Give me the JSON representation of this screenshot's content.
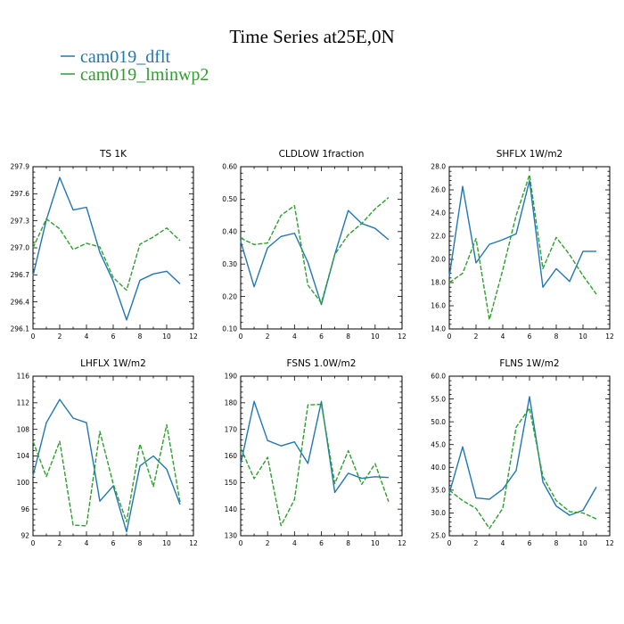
{
  "figure": {
    "title": "Time Series at25E,0N",
    "legend": [
      {
        "label": "cam019_dflt",
        "color": "#1f77b4",
        "dash": "solid"
      },
      {
        "label": "cam019_lminwp2",
        "color": "#2ca02c",
        "dash": "dashed"
      }
    ]
  },
  "chart_data": [
    {
      "type": "line",
      "title": "TS   1K",
      "x": [
        0,
        1,
        2,
        3,
        4,
        5,
        6,
        7,
        8,
        9,
        10,
        11
      ],
      "xlim": [
        0,
        12
      ],
      "xticks": [
        0,
        2,
        4,
        6,
        8,
        10,
        12
      ],
      "xtick_labels": [
        "0",
        "2",
        "4",
        "6",
        "8",
        "10",
        "12"
      ],
      "ylim": [
        296.1,
        297.9
      ],
      "yticks": [
        296.1,
        296.4,
        296.7,
        297.0,
        297.3,
        297.6,
        297.9
      ],
      "ytick_labels": [
        "296.1",
        "296.4",
        "296.7",
        "297.0",
        "297.3",
        "297.6",
        "297.9"
      ],
      "series": [
        {
          "name": "cam019_dflt",
          "values": [
            296.69,
            297.31,
            297.78,
            297.42,
            297.45,
            296.95,
            296.63,
            296.2,
            296.64,
            296.71,
            296.74,
            296.6
          ]
        },
        {
          "name": "cam019_lminwp2",
          "values": [
            297.0,
            297.32,
            297.21,
            296.98,
            297.05,
            297.01,
            296.67,
            296.53,
            297.04,
            297.12,
            297.22,
            297.08
          ]
        }
      ]
    },
    {
      "type": "line",
      "title": "CLDLOW   1fraction",
      "x": [
        0,
        1,
        2,
        3,
        4,
        5,
        6,
        7,
        8,
        9,
        10,
        11
      ],
      "xlim": [
        0,
        12
      ],
      "xticks": [
        0,
        2,
        4,
        6,
        8,
        10,
        12
      ],
      "xtick_labels": [
        "0",
        "2",
        "4",
        "6",
        "8",
        "10",
        "12"
      ],
      "ylim": [
        0.1,
        0.6
      ],
      "yticks": [
        0.1,
        0.2,
        0.3,
        0.4,
        0.5,
        0.6
      ],
      "ytick_labels": [
        "0.10",
        "0.20",
        "0.30",
        "0.40",
        "0.50",
        "0.60"
      ],
      "series": [
        {
          "name": "cam019_dflt",
          "values": [
            0.37,
            0.23,
            0.35,
            0.385,
            0.395,
            0.305,
            0.175,
            0.33,
            0.465,
            0.425,
            0.41,
            0.375
          ]
        },
        {
          "name": "cam019_lminwp2",
          "values": [
            0.38,
            0.36,
            0.365,
            0.45,
            0.48,
            0.235,
            0.18,
            0.33,
            0.39,
            0.425,
            0.47,
            0.505
          ]
        }
      ]
    },
    {
      "type": "line",
      "title": "SHFLX   1W/m2",
      "x": [
        0,
        1,
        2,
        3,
        4,
        5,
        6,
        7,
        8,
        9,
        10,
        11
      ],
      "xlim": [
        0,
        12
      ],
      "xticks": [
        0,
        2,
        4,
        6,
        8,
        10,
        12
      ],
      "xtick_labels": [
        "0",
        "2",
        "4",
        "6",
        "8",
        "10",
        "12"
      ],
      "ylim": [
        14.0,
        28.0
      ],
      "yticks": [
        14.0,
        16.0,
        18.0,
        20.0,
        22.0,
        24.0,
        26.0,
        28.0
      ],
      "ytick_labels": [
        "14.0",
        "16.0",
        "18.0",
        "20.0",
        "22.0",
        "24.0",
        "26.0",
        "28.0"
      ],
      "series": [
        {
          "name": "cam019_dflt",
          "values": [
            18.5,
            26.3,
            19.7,
            21.3,
            21.7,
            22.2,
            26.8,
            17.6,
            19.2,
            18.1,
            20.7,
            20.7
          ]
        },
        {
          "name": "cam019_lminwp2",
          "values": [
            18.0,
            18.8,
            21.8,
            14.8,
            19.1,
            23.8,
            27.3,
            19.2,
            21.9,
            20.4,
            18.6,
            17.0
          ]
        }
      ]
    },
    {
      "type": "line",
      "title": "LHFLX   1W/m2",
      "x": [
        0,
        1,
        2,
        3,
        4,
        5,
        6,
        7,
        8,
        9,
        10,
        11
      ],
      "xlim": [
        0,
        12
      ],
      "xticks": [
        0,
        2,
        4,
        6,
        8,
        10,
        12
      ],
      "xtick_labels": [
        "0",
        "2",
        "4",
        "6",
        "8",
        "10",
        "12"
      ],
      "ylim": [
        92,
        116
      ],
      "yticks": [
        92,
        96,
        100,
        104,
        108,
        112,
        116
      ],
      "ytick_labels": [
        "92",
        "96",
        "100",
        "104",
        "108",
        "112",
        "116"
      ],
      "series": [
        {
          "name": "cam019_dflt",
          "values": [
            101.0,
            109.0,
            112.5,
            109.7,
            109.0,
            97.2,
            99.5,
            92.6,
            102.5,
            104.0,
            102.0,
            96.7
          ]
        },
        {
          "name": "cam019_lminwp2",
          "values": [
            106.2,
            100.9,
            106.2,
            93.6,
            93.5,
            107.7,
            99.8,
            94.1,
            105.8,
            99.4,
            108.7,
            97.0
          ]
        }
      ]
    },
    {
      "type": "line",
      "title": "FSNS   1.0W/m2",
      "x": [
        0,
        1,
        2,
        3,
        4,
        5,
        6,
        7,
        8,
        9,
        10,
        11
      ],
      "xlim": [
        0,
        12
      ],
      "xticks": [
        0,
        2,
        4,
        6,
        8,
        10,
        12
      ],
      "xtick_labels": [
        "0",
        "2",
        "4",
        "6",
        "8",
        "10",
        "12"
      ],
      "ylim": [
        130,
        190
      ],
      "yticks": [
        130,
        140,
        150,
        160,
        170,
        180,
        190
      ],
      "ytick_labels": [
        "130",
        "140",
        "150",
        "160",
        "170",
        "180",
        "190"
      ],
      "series": [
        {
          "name": "cam019_dflt",
          "values": [
            157.0,
            180.5,
            165.8,
            163.8,
            165.3,
            157.2,
            180.5,
            146.3,
            153.5,
            151.6,
            152.2,
            151.9
          ]
        },
        {
          "name": "cam019_lminwp2",
          "values": [
            163.0,
            151.5,
            159.5,
            133.8,
            143.6,
            179.2,
            179.4,
            149.6,
            162.0,
            149.3,
            157.1,
            142.8
          ]
        }
      ]
    },
    {
      "type": "line",
      "title": "FLNS   1W/m2",
      "x": [
        0,
        1,
        2,
        3,
        4,
        5,
        6,
        7,
        8,
        9,
        10,
        11
      ],
      "xlim": [
        0,
        12
      ],
      "xticks": [
        0,
        2,
        4,
        6,
        8,
        10,
        12
      ],
      "xtick_labels": [
        "0",
        "2",
        "4",
        "6",
        "8",
        "10",
        "12"
      ],
      "ylim": [
        25.0,
        60.0
      ],
      "yticks": [
        25.0,
        30.0,
        35.0,
        40.0,
        45.0,
        50.0,
        55.0,
        60.0
      ],
      "ytick_labels": [
        "25.0",
        "30.0",
        "35.0",
        "40.0",
        "45.0",
        "50.0",
        "55.0",
        "60.0"
      ],
      "series": [
        {
          "name": "cam019_dflt",
          "values": [
            34.3,
            44.5,
            33.3,
            33.0,
            35.2,
            39.3,
            55.5,
            36.8,
            31.5,
            29.5,
            30.6,
            35.7
          ]
        },
        {
          "name": "cam019_lminwp2",
          "values": [
            35.0,
            32.7,
            31.0,
            26.6,
            31.0,
            48.8,
            53.0,
            38.0,
            32.7,
            30.3,
            30.0,
            28.7
          ]
        }
      ]
    }
  ]
}
